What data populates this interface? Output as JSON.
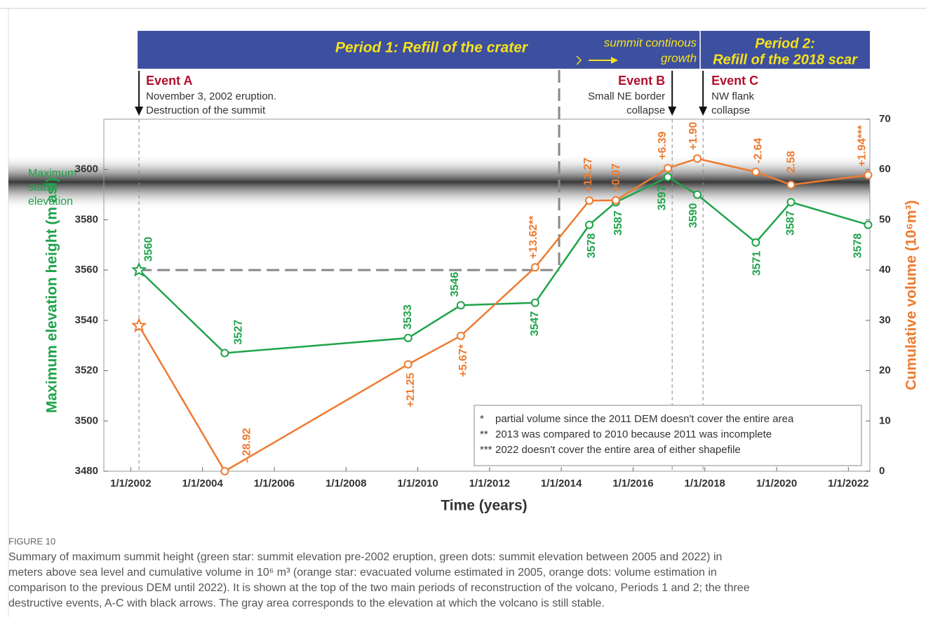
{
  "chart_data": {
    "type": "line",
    "x_label": "Time (years)",
    "y_label": "Maximum elevation height (m asl)",
    "y2_label": "Cumulative volume (10⁶m³)",
    "x": [
      2002.23,
      2004.62,
      2009.73,
      2011.2,
      2013.27,
      2014.78,
      2015.52,
      2016.97,
      2017.79,
      2019.42,
      2020.4,
      2022.55
    ],
    "xlim": [
      2001.25,
      2022.6
    ],
    "xticks": [
      {
        "value": 2002,
        "label": "1/1/2002"
      },
      {
        "value": 2004,
        "label": "1/1/2004"
      },
      {
        "value": 2006,
        "label": "1/1/2006"
      },
      {
        "value": 2008,
        "label": "1/1/2008"
      },
      {
        "value": 2010,
        "label": "1/1/2010"
      },
      {
        "value": 2012,
        "label": "1/1/2012"
      },
      {
        "value": 2014,
        "label": "1/1/2014"
      },
      {
        "value": 2016,
        "label": "1/1/2016"
      },
      {
        "value": 2018,
        "label": "1/1/2018"
      },
      {
        "value": 2020,
        "label": "1/1/2020"
      },
      {
        "value": 2022,
        "label": "1/1/2022"
      }
    ],
    "ylim": [
      3480,
      3620
    ],
    "yticks": [
      3480,
      3500,
      3520,
      3540,
      3560,
      3580,
      3600
    ],
    "y2lim": [
      0,
      70
    ],
    "y2ticks": [
      0,
      10,
      20,
      30,
      40,
      50,
      60,
      70
    ],
    "series": [
      {
        "color": "#1fa34a",
        "first_marker": "star",
        "values": [
          3560,
          3527,
          3533,
          3546,
          3547,
          3578,
          3587,
          3597,
          3590,
          3571,
          3587,
          3578
        ]
      },
      {
        "color": "#ee7b30",
        "axis": "y2",
        "first_marker": "star",
        "values": [
          28.92,
          0,
          21.25,
          26.92,
          40.54,
          53.81,
          53.88,
          60.27,
          62.17,
          59.53,
          56.95,
          58.89
        ],
        "change_labels": [
          null,
          "- 28.92",
          "+21.25",
          "+5.67*",
          "+13.62**",
          "+13.27",
          "+0.07",
          "+6.39",
          "+1.90",
          "-2.64",
          "-2.58",
          "+1.94***"
        ]
      }
    ],
    "stable_band": {
      "range": [
        3590,
        3600
      ],
      "label_lines": [
        "Maximum",
        "stable",
        "elevation"
      ]
    },
    "banner": {
      "period1": "Period 1: Refill of the crater",
      "growth_lines": [
        "summit continous",
        "growth"
      ],
      "period2_lines": [
        "Period 2:",
        "Refill of the 2018 scar"
      ],
      "divider_x": 2013.94,
      "split_x": 2017.87
    },
    "events": [
      {
        "title": "Event A",
        "lines": [
          "November 3, 2002 eruption.",
          "Destruction of the summit"
        ],
        "x": 2002.23
      },
      {
        "title": "Event B",
        "lines": [
          "Small NE border",
          "collapse"
        ],
        "x": 2017.09
      },
      {
        "title": "Event C",
        "lines": [
          "NW flank",
          "collapse"
        ],
        "x": 2017.95
      }
    ],
    "notes": [
      {
        "symbol": "*",
        "text": "partial volume since the 2011 DEM doesn't cover the entire area"
      },
      {
        "symbol": "**",
        "text": "2013 was compared to 2010 because 2011 was incomplete"
      },
      {
        "symbol": "***",
        "text": "2022 doesn't cover the entire area of either shapefile"
      }
    ]
  },
  "caption": {
    "label": "FIGURE 10",
    "lines": [
      "Summary of maximum summit height (green star: summit elevation pre-2002 eruption, green dots: summit elevation between 2005 and 2022) in",
      "meters above sea level and cumulative volume in 10⁶ m³ (orange star: evacuated volume estimated in 2005, orange dots: volume estimation in",
      "comparison to the previous DEM until 2022). It is shown at the top of the two main periods of reconstruction of the volcano, Periods 1 and 2; the three",
      "destructive events, A-C with black arrows. The gray area corresponds to the elevation at which the volcano is still stable."
    ]
  }
}
